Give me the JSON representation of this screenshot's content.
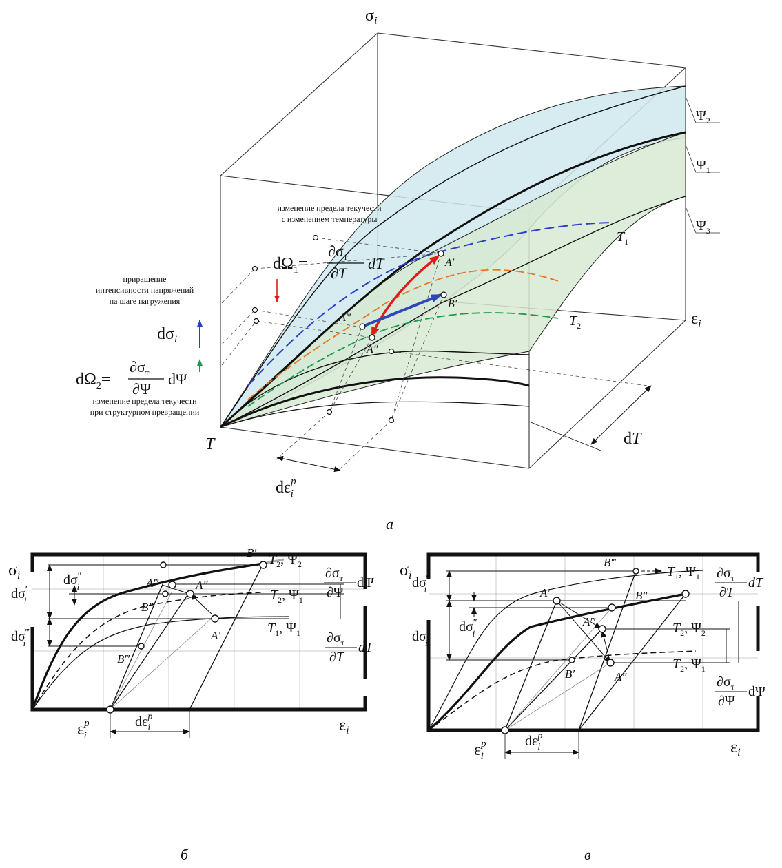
{
  "figure_a": {
    "axes": {
      "sigma": "σ",
      "sigma_sub": "i",
      "eps": "ε",
      "eps_sub": "i",
      "temp": "T"
    },
    "surface_labels": {
      "psi2": "Ψ",
      "psi2_sub": "2",
      "psi1": "Ψ",
      "psi1_sub": "1",
      "psi3": "Ψ",
      "psi3_sub": "3"
    },
    "curve_labels": {
      "t1": "T",
      "t1_sub": "1",
      "t2": "T",
      "t2_sub": "2"
    },
    "points": {
      "a1": "A′",
      "a2": "A″",
      "a3": "A‴",
      "b1": "B′"
    },
    "annotations": {
      "temp_yield_1": "изменение предела текучести",
      "temp_yield_2": "с изменением температуры",
      "increment_1": "приращение",
      "increment_2": "интенсивности напряжений",
      "increment_3": "на шаге нагружения",
      "struct_yield_1": "изменение предела текучести",
      "struct_yield_2": "при структурном превращении"
    },
    "formulas": {
      "d_omega1_lhs": "dΩ",
      "d_omega1_sub": "1",
      "d_omega1_num": "∂σ",
      "d_omega1_num_sub": "т",
      "d_omega1_den": "∂T",
      "d_omega1_tail": "dT",
      "d_omega2_lhs": "dΩ",
      "d_omega2_sub": "2",
      "d_omega2_num": "∂σ",
      "d_omega2_num_sub": "т",
      "d_omega2_den": "∂Ψ",
      "d_omega2_tail": "dΨ",
      "d_sigma": "dσ",
      "d_sigma_sub": "i",
      "d_eps": "dε",
      "d_eps_sup": "p",
      "d_eps_sub": "i",
      "dT": "dT"
    },
    "caption": "а"
  },
  "figure_b": {
    "axes": {
      "sigma": "σ",
      "sigma_sub": "i",
      "eps": "ε",
      "eps_sub": "i",
      "eps_p": "ε",
      "eps_p_sup": "p",
      "eps_p_sub": "i"
    },
    "curve_labels": {
      "c1": "T",
      "c1_sub": "2",
      "c1_psi": "Ψ",
      "c1_psi_sub": "2",
      "c2": "T",
      "c2_sub": "2",
      "c2_psi": "Ψ",
      "c2_psi_sub": "1",
      "c3": "T",
      "c3_sub": "1",
      "c3_psi": "Ψ",
      "c3_psi_sub": "1"
    },
    "points": {
      "a1": "A′",
      "a2": "A″",
      "a3": "A‴",
      "b1": "B′",
      "b2": "B″",
      "b3": "B‴"
    },
    "dims": {
      "ds1": "dσ",
      "ds1_mark": "′",
      "ds1_sub": "i",
      "ds2": "dσ",
      "ds2_mark": "″",
      "ds2_sub": "i",
      "ds3": "dσ",
      "ds3_mark": "‴",
      "ds3_sub": "i",
      "deps": "dε",
      "deps_sup": "p",
      "deps_sub": "i"
    },
    "side_formulas": {
      "f1_num": "∂σ",
      "f1_num_sub": "т",
      "f1_den": "∂Ψ",
      "f1_tail": "dΨ",
      "f2_num": "∂σ",
      "f2_num_sub": "т",
      "f2_den": "∂T",
      "f2_tail": "dT"
    },
    "caption": "б"
  },
  "figure_c": {
    "axes": {
      "sigma": "σ",
      "sigma_sub": "i",
      "eps": "ε",
      "eps_sub": "i",
      "eps_p": "ε",
      "eps_p_sup": "p",
      "eps_p_sub": "i"
    },
    "curve_labels": {
      "c1": "T",
      "c1_sub": "1",
      "c1_psi": "Ψ",
      "c1_psi_sub": "1",
      "c2": "T",
      "c2_sub": "2",
      "c2_psi": "Ψ",
      "c2_psi_sub": "2",
      "c3": "T",
      "c3_sub": "2",
      "c3_psi": "Ψ",
      "c3_psi_sub": "1"
    },
    "points": {
      "a1": "A′",
      "a2": "A″",
      "a3": "A‴",
      "b1": "B′",
      "b2": "B″",
      "b3": "B‴"
    },
    "dims": {
      "ds1": "dσ",
      "ds1_mark": "′",
      "ds1_sub": "i",
      "ds2": "dσ",
      "ds2_mark": "″",
      "ds2_sub": "i",
      "ds3": "dσ",
      "ds3_mark": "‴",
      "ds3_sub": "i",
      "deps": "dε",
      "deps_sup": "p",
      "deps_sub": "i"
    },
    "side_formulas": {
      "f1_num": "∂σ",
      "f1_num_sub": "т",
      "f1_den": "∂T",
      "f1_tail": "dT",
      "f2_num": "∂σ",
      "f2_num_sub": "т",
      "f2_den": "∂Ψ",
      "f2_tail": "dΨ"
    },
    "caption": "в"
  },
  "colors": {
    "surface_blue": "#cfe9ee",
    "surface_green": "#d7ead3",
    "curve_t1": "#2b3fc8",
    "curve_orange": "#e8761e",
    "curve_green": "#1f9a4a",
    "arrow_red": "#e01b1b",
    "arrow_blue": "#2f46b8"
  }
}
